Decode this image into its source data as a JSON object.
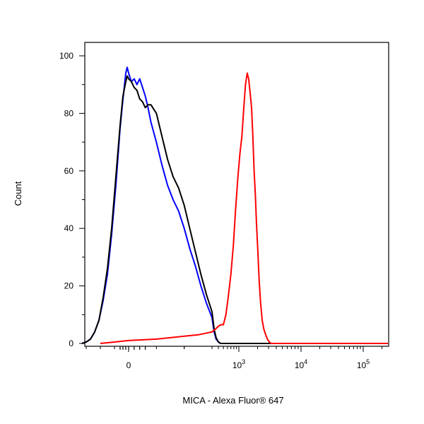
{
  "chart_data": {
    "type": "line",
    "title": "",
    "xlabel": "MICA - Alexa Fluor® 647",
    "ylabel": "Count",
    "ylim": [
      0,
      105
    ],
    "x_scale": "biexponential",
    "grid": false,
    "legend": "none",
    "y_ticks": [
      {
        "value": 0,
        "label": "0"
      },
      {
        "value": 20,
        "label": "20"
      },
      {
        "value": 40,
        "label": "40"
      },
      {
        "value": 60,
        "label": "60"
      },
      {
        "value": 80,
        "label": "80"
      },
      {
        "value": 100,
        "label": "100"
      }
    ],
    "x_ticks": [
      {
        "value": 0,
        "base": "0",
        "exp": ""
      },
      {
        "value": 1000,
        "base": "10",
        "exp": "3"
      },
      {
        "value": 10000,
        "base": "10",
        "exp": "4"
      },
      {
        "value": 100000,
        "base": "10",
        "exp": "5"
      }
    ],
    "series": [
      {
        "color": "#0000ff",
        "x": [
          -330,
          -300,
          -270,
          -240,
          -210,
          -180,
          -150,
          -120,
          -90,
          -60,
          -40,
          -20,
          -10,
          0,
          10,
          20,
          30,
          40,
          50,
          60,
          70,
          80,
          100,
          120,
          140,
          160,
          180,
          200,
          220,
          240,
          260,
          280,
          300,
          330,
          360,
          400,
          440
        ],
        "y": [
          0,
          0.5,
          1.5,
          4,
          8,
          15,
          24,
          38,
          55,
          75,
          85,
          94,
          96,
          94,
          91,
          92,
          90,
          92,
          89,
          86,
          82,
          77,
          70,
          62,
          55,
          50,
          46,
          40,
          33,
          27,
          20,
          14,
          9,
          4,
          1.5,
          0.5,
          0
        ]
      },
      {
        "color": "#000000",
        "x": [
          -330,
          -300,
          -270,
          -240,
          -210,
          -180,
          -150,
          -120,
          -90,
          -60,
          -40,
          -20,
          -10,
          0,
          10,
          20,
          30,
          40,
          50,
          60,
          70,
          80,
          100,
          120,
          140,
          160,
          180,
          200,
          220,
          240,
          260,
          280,
          300,
          330,
          360,
          400,
          440
        ],
        "y": [
          0,
          0.5,
          1.5,
          4,
          8,
          16,
          26,
          40,
          58,
          76,
          86,
          91,
          93,
          92,
          91,
          89,
          88,
          85,
          84,
          82,
          83,
          83,
          80,
          72,
          64,
          58,
          54,
          48,
          40,
          32,
          24,
          17,
          11,
          5,
          2,
          0.5,
          0
        ]
      },
      {
        "color": "#ff0000",
        "x": [
          -200,
          -100,
          0,
          100,
          200,
          250,
          300,
          350,
          400,
          450,
          500,
          560,
          620,
          700,
          780,
          860,
          960,
          1040,
          1120,
          1200,
          1280,
          1360,
          1440,
          1520,
          1600,
          1680,
          1760,
          1840,
          1920,
          2020,
          2120,
          2240,
          2380,
          2520,
          2700,
          2880,
          3100,
          3300,
          3520,
          3760,
          4000,
          4250,
          4500
        ],
        "y": [
          0,
          0.5,
          1,
          1.5,
          2.5,
          3,
          4,
          5,
          6,
          6.5,
          6.5,
          10,
          16,
          24,
          34,
          46,
          58,
          66,
          72,
          82,
          90,
          94,
          92,
          87,
          82,
          72,
          60,
          52,
          42,
          32,
          22,
          14,
          8,
          5,
          3,
          1.5,
          0.5,
          0,
          0,
          0,
          0,
          0,
          0
        ]
      }
    ]
  }
}
